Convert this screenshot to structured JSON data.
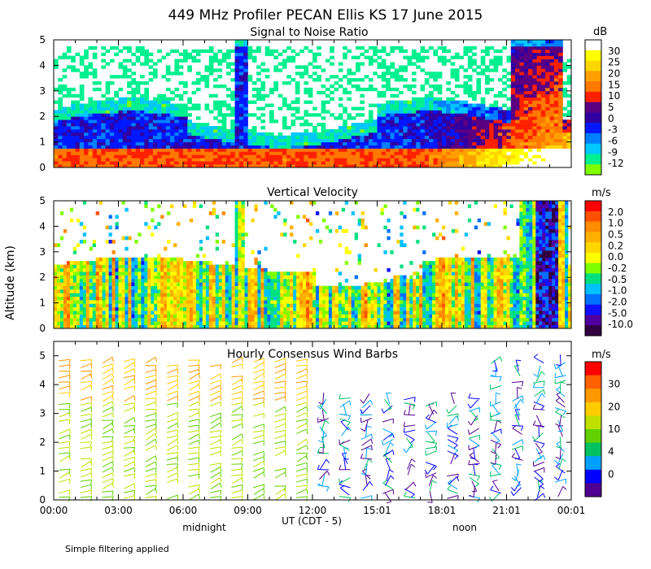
{
  "title": "449 MHz Profiler PECAN Ellis KS 17 June 2015",
  "ylabel": "Altitude (km)",
  "xlabel": "UT  (CDT - 5)",
  "x_tick_labels": [
    "00:00",
    "03:00",
    "06:00",
    "09:00",
    "12:00",
    "15:01",
    "18:01",
    "21:01",
    "00:01"
  ],
  "x_annotations": [
    "midnight",
    "noon"
  ],
  "footnote": "Simple filtering applied",
  "chart_data": [
    {
      "type": "heatmap",
      "title": "Signal to Noise Ratio",
      "units": "dB",
      "x_range_hours": [
        0,
        24
      ],
      "ylim": [
        0,
        5
      ],
      "y_ticks": [
        "0",
        "1",
        "2",
        "3",
        "4",
        "5"
      ],
      "colorbar_labels": [
        "30",
        "25",
        "20",
        "15",
        "10",
        "5",
        "0",
        "-3",
        "-6",
        "-9",
        "-12"
      ],
      "colorbar_colors": [
        "#ffffff",
        "#ffff00",
        "#ffd700",
        "#ffa000",
        "#ff7800",
        "#ff2000",
        "#5a0080",
        "#3000a0",
        "#0018ff",
        "#0080ff",
        "#00c8ff",
        "#00f090",
        "#80ff00"
      ]
    },
    {
      "type": "heatmap",
      "title": "Vertical Velocity",
      "units": "m/s",
      "x_range_hours": [
        0,
        24
      ],
      "ylim": [
        0,
        5
      ],
      "y_ticks": [
        "0",
        "1",
        "2",
        "3",
        "4",
        "5"
      ],
      "colorbar_labels": [
        "2.0",
        "1.0",
        "0.5",
        "0.2",
        "0.0",
        "-0.2",
        "-0.5",
        "-1.0",
        "-2.0",
        "-5.0",
        "-10.0"
      ],
      "colorbar_colors": [
        "#ff0000",
        "#ff5000",
        "#ff8c00",
        "#ffb000",
        "#ffd700",
        "#ffff00",
        "#80ff00",
        "#00e080",
        "#00c0ff",
        "#0070ff",
        "#1010ff",
        "#5000a0",
        "#300040"
      ]
    },
    {
      "type": "wind_barbs",
      "title": "Hourly Consensus Wind Barbs",
      "units": "m/s",
      "x_range_hours": [
        0,
        24
      ],
      "ylim": [
        0,
        5.5
      ],
      "y_ticks": [
        "0",
        "1",
        "2",
        "3",
        "4",
        "5"
      ],
      "colorbar_labels": [
        "30",
        "20",
        "10",
        "4",
        "0"
      ],
      "colorbar_colors": [
        "#ff0000",
        "#ff6000",
        "#ff9900",
        "#ffcc00",
        "#c0e000",
        "#60d000",
        "#00c060",
        "#00a0ff",
        "#0000ff",
        "#500090"
      ]
    }
  ]
}
